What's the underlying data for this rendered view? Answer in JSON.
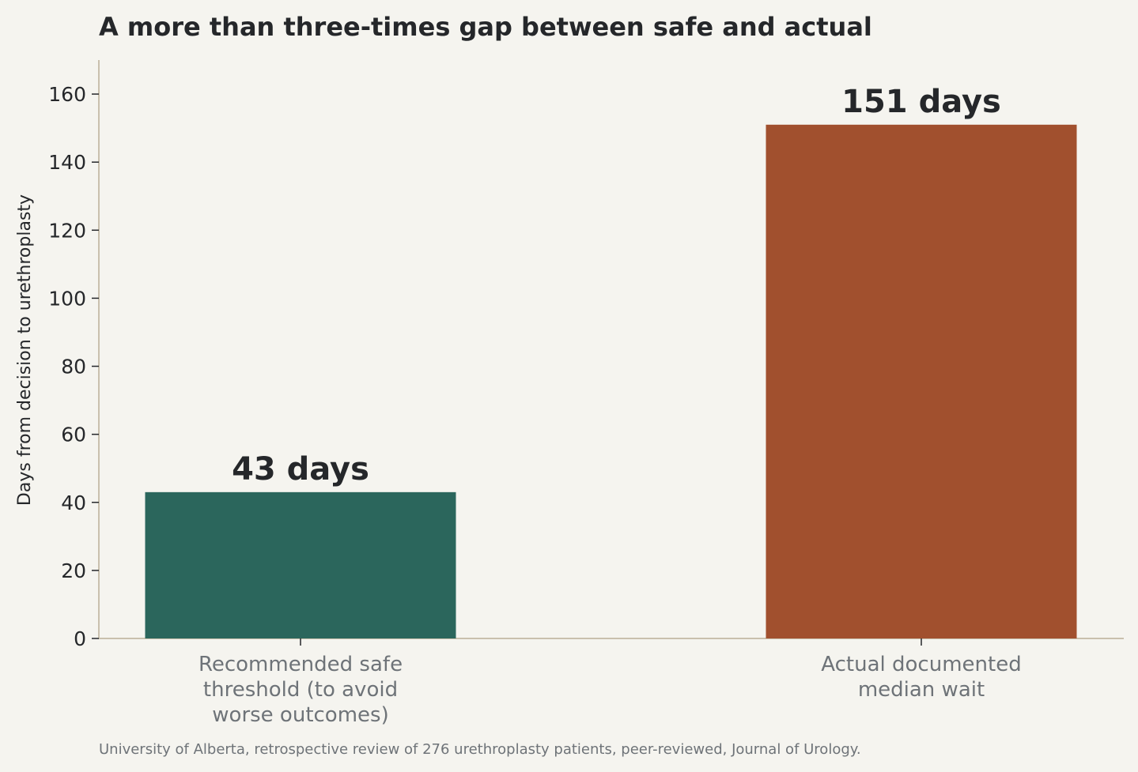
{
  "chart_data": {
    "type": "bar",
    "title": "A more than three-times gap between safe and actual",
    "ylabel": "Days from decision to urethroplasty",
    "xlabel": "",
    "categories": [
      [
        "Recommended safe",
        "threshold (to avoid",
        "worse outcomes)"
      ],
      [
        "Actual documented",
        "median wait"
      ]
    ],
    "values": [
      43,
      151
    ],
    "data_labels": [
      "43 days",
      "151 days"
    ],
    "colors": [
      "#2b665c",
      "#a1502e"
    ],
    "ylim": [
      0,
      170
    ],
    "yticks": [
      0,
      20,
      40,
      60,
      80,
      100,
      120,
      140,
      160
    ],
    "grid": false,
    "source": "University of Alberta, retrospective review of 276 urethroplasty patients, peer-reviewed, Journal of Urology."
  }
}
